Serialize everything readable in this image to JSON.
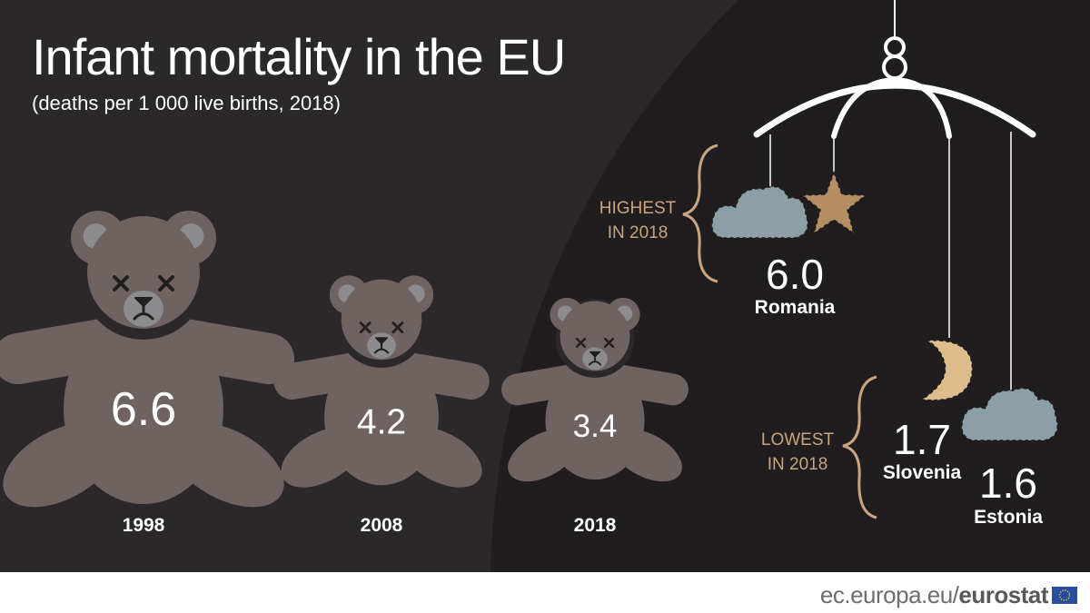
{
  "title": "Infant mortality in the EU",
  "subtitle": "(deaths per 1 000 live births, 2018)",
  "colors": {
    "background": "#2b2829",
    "background_dark": "#201d1e",
    "bear": "#6f6361",
    "bear_inner": "#8c8b8d",
    "accent": "#c9a47e",
    "cloud": "#8c9fa6",
    "star": "#b58e63",
    "moon": "#ddbd8c"
  },
  "chart_data": {
    "type": "bar",
    "style": "pictograph (teddy bears sized by value)",
    "categories": [
      "1998",
      "2008",
      "2018"
    ],
    "values": [
      6.6,
      4.2,
      3.4
    ],
    "value_labels": [
      "6.6",
      "4.2",
      "3.4"
    ],
    "title": "Infant mortality in the EU",
    "subtitle": "(deaths per 1 000 live births, 2018)"
  },
  "highlights": {
    "highest": {
      "label_line1": "HIGHEST",
      "label_line2": "IN 2018",
      "items": [
        {
          "value": "6.0",
          "country": "Romania"
        }
      ]
    },
    "lowest": {
      "label_line1": "LOWEST",
      "label_line2": "IN 2018",
      "items": [
        {
          "value": "1.7",
          "country": "Slovenia"
        },
        {
          "value": "1.6",
          "country": "Estonia"
        }
      ]
    }
  },
  "footer": {
    "domain": "ec.europa.eu/",
    "brand": "eurostat",
    "flag_icon": "eu-flag-icon"
  }
}
